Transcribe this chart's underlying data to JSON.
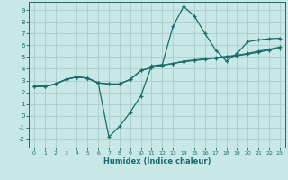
{
  "xlabel": "Humidex (Indice chaleur)",
  "bg_color": "#c8e8e8",
  "grid_color": "#aacccc",
  "line_color": "#1a6b6b",
  "xlim": [
    -0.5,
    23.5
  ],
  "ylim": [
    -2.7,
    9.7
  ],
  "xticks": [
    0,
    1,
    2,
    3,
    4,
    5,
    6,
    7,
    8,
    9,
    10,
    11,
    12,
    13,
    14,
    15,
    16,
    17,
    18,
    19,
    20,
    21,
    22,
    23
  ],
  "yticks": [
    -2,
    -1,
    0,
    1,
    2,
    3,
    4,
    5,
    6,
    7,
    8,
    9
  ],
  "curve_x": [
    0,
    1,
    2,
    3,
    4,
    5,
    6,
    7,
    8,
    9,
    10,
    11,
    12,
    13,
    14,
    15,
    16,
    17,
    18,
    19,
    20,
    21,
    22,
    23
  ],
  "curve_y": [
    2.5,
    2.5,
    2.7,
    3.1,
    3.3,
    3.2,
    2.8,
    -1.8,
    -0.9,
    0.3,
    1.7,
    4.25,
    4.35,
    7.6,
    9.3,
    8.5,
    7.0,
    5.6,
    4.65,
    5.3,
    6.3,
    6.45,
    6.55,
    6.6
  ],
  "line1_x": [
    0,
    1,
    2,
    3,
    4,
    5,
    6,
    7,
    8,
    9,
    10,
    11,
    12,
    13,
    14,
    15,
    16,
    17,
    18,
    19,
    20,
    21,
    22,
    23
  ],
  "line1_y": [
    2.5,
    2.5,
    2.7,
    3.1,
    3.3,
    3.2,
    2.8,
    2.7,
    2.7,
    3.1,
    3.85,
    4.1,
    4.3,
    4.45,
    4.6,
    4.7,
    4.8,
    4.9,
    5.0,
    5.1,
    5.25,
    5.4,
    5.6,
    5.75
  ],
  "line2_x": [
    0,
    1,
    2,
    3,
    4,
    5,
    6,
    7,
    8,
    9,
    10,
    11,
    12,
    13,
    14,
    15,
    16,
    17,
    18,
    19,
    20,
    21,
    22,
    23
  ],
  "line2_y": [
    2.5,
    2.5,
    2.7,
    3.1,
    3.3,
    3.2,
    2.8,
    2.7,
    2.7,
    3.1,
    3.85,
    4.1,
    4.3,
    4.45,
    4.65,
    4.75,
    4.85,
    4.95,
    5.05,
    5.15,
    5.3,
    5.5,
    5.65,
    5.85
  ]
}
